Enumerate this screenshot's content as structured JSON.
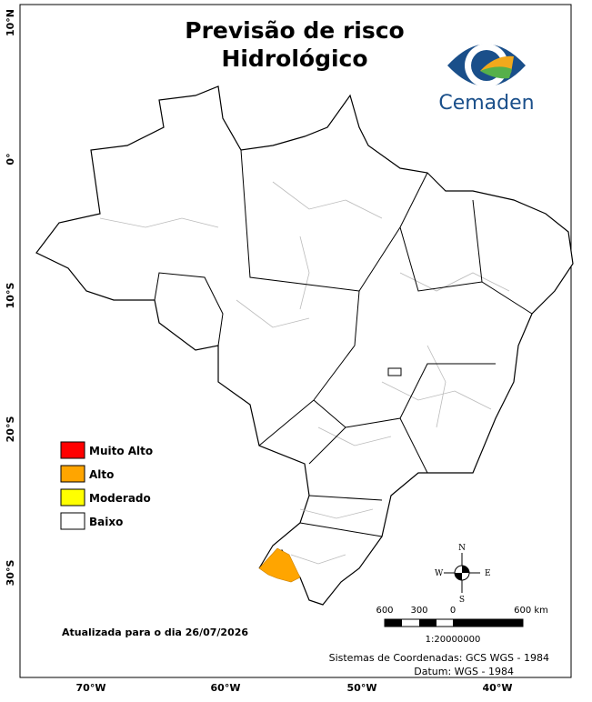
{
  "title": {
    "line1": "Previsão de risco",
    "line2": "Hidrológico"
  },
  "logo": {
    "text": "Cemaden"
  },
  "latitude_labels": [
    "10°N",
    "0°",
    "10°S",
    "20°S",
    "30°S"
  ],
  "longitude_labels": [
    "70°W",
    "60°W",
    "50°W",
    "40°W"
  ],
  "legend": [
    {
      "label": "Muito Alto",
      "color": "#ff0000"
    },
    {
      "label": "Alto",
      "color": "#ffa500"
    },
    {
      "label": "Moderado",
      "color": "#ffff00"
    },
    {
      "label": "Baixo",
      "color": "#ffffff"
    }
  ],
  "scale_bar": {
    "labels": [
      "600",
      "300",
      "0",
      "600 km"
    ],
    "ratio": "1:20000000"
  },
  "compass": {
    "n": "N",
    "s": "S",
    "e": "E",
    "w": "W"
  },
  "updated": "Atualizada para o dia 26/07/2026",
  "footer": [
    "Sistemas de Coordenadas: GCS WGS - 1984",
    "Datum: WGS - 1984"
  ]
}
